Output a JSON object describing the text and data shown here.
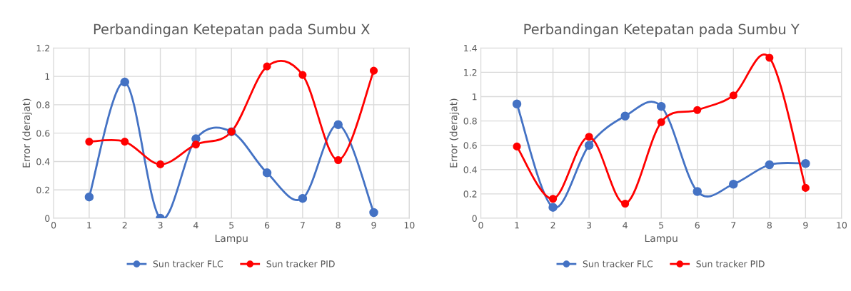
{
  "chart_data": [
    {
      "type": "line",
      "title": "Perbandingan Ketepatan pada Sumbu X",
      "xlabel": "Lampu",
      "ylabel": "Error (derajat)",
      "x": [
        1,
        2,
        3,
        4,
        5,
        6,
        7,
        8,
        9
      ],
      "series": [
        {
          "name": "Sun tracker FLC",
          "color": "#4472c4",
          "values": [
            0.15,
            0.96,
            0.0,
            0.56,
            0.61,
            0.32,
            0.14,
            0.66,
            0.04
          ]
        },
        {
          "name": "Sun tracker PID",
          "color": "#ff0000",
          "values": [
            0.54,
            0.54,
            0.38,
            0.52,
            0.61,
            1.07,
            1.01,
            0.41,
            1.04
          ]
        }
      ],
      "xlim": [
        0,
        10
      ],
      "xticks": [
        0,
        1,
        2,
        3,
        4,
        5,
        6,
        7,
        8,
        9,
        10
      ],
      "ylim": [
        0,
        1.2
      ],
      "yticks": [
        0,
        0.2,
        0.4,
        0.6,
        0.8,
        1,
        1.2
      ],
      "grid": true,
      "legend": "bottom",
      "marker": "circle",
      "line_style": "solid"
    },
    {
      "type": "line",
      "title": "Perbandingan Ketepatan pada Sumbu Y",
      "xlabel": "Lampu",
      "ylabel": "Error (derajat)",
      "x": [
        1,
        2,
        3,
        4,
        5,
        6,
        7,
        8,
        9
      ],
      "series": [
        {
          "name": "Sun tracker FLC",
          "color": "#4472c4",
          "values": [
            0.94,
            0.09,
            0.6,
            0.84,
            0.92,
            0.22,
            0.28,
            0.44,
            0.45
          ]
        },
        {
          "name": "Sun tracker PID",
          "color": "#ff0000",
          "values": [
            0.59,
            0.16,
            0.67,
            0.12,
            0.79,
            0.89,
            1.01,
            1.32,
            0.25
          ]
        }
      ],
      "xlim": [
        0,
        10
      ],
      "xticks": [
        0,
        1,
        2,
        3,
        4,
        5,
        6,
        7,
        8,
        9,
        10
      ],
      "ylim": [
        0,
        1.4
      ],
      "yticks": [
        0,
        0.2,
        0.4,
        0.6,
        0.8,
        1,
        1.2,
        1.4
      ],
      "grid": true,
      "legend": "bottom",
      "marker": "circle",
      "line_style": "solid"
    }
  ]
}
